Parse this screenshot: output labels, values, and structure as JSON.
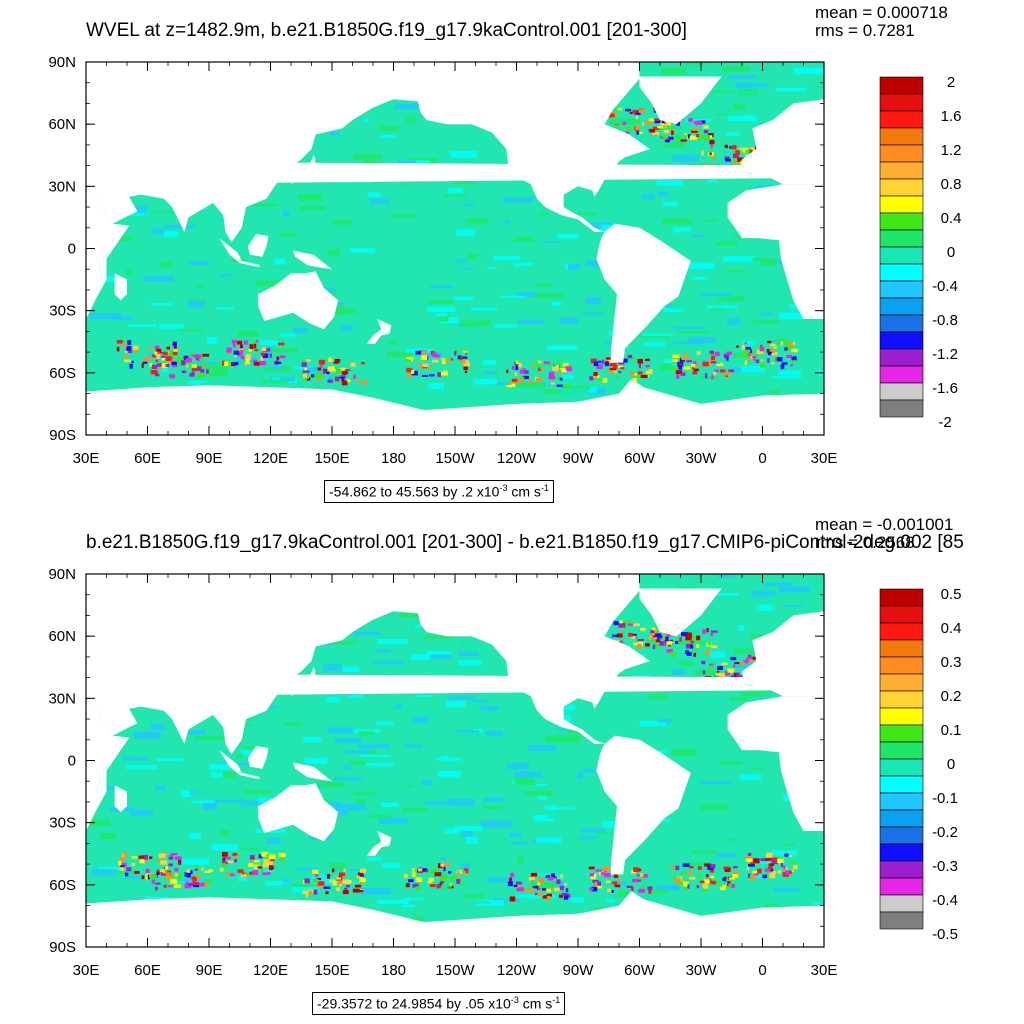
{
  "colors": {
    "palette": [
      "#7f7f7f",
      "#cccccc",
      "#e626e6",
      "#9c1fcf",
      "#0f0fff",
      "#1a73e6",
      "#0ba0f0",
      "#21c6ff",
      "#00ffff",
      "#19e6b3",
      "#1fe666",
      "#40e61a",
      "#ffff00",
      "#ffd333",
      "#ffaf33",
      "#ff8c1f",
      "#f07a0d",
      "#ff1a0d",
      "#e60f0f",
      "#bf0000"
    ],
    "land": "#ffffff",
    "ocean_base": "#22e6b0"
  },
  "axes": {
    "lat_labels": [
      "90N",
      "60N",
      "30N",
      "0",
      "30S",
      "60S",
      "90S"
    ],
    "lon_labels": [
      "30E",
      "60E",
      "90E",
      "120E",
      "150E",
      "180",
      "150W",
      "120W",
      "90W",
      "60W",
      "30W",
      "0",
      "30E"
    ]
  },
  "panels": [
    {
      "title": "WVEL at z=1482.9m, b.e21.B1850G.f19_g17.9kaControl.001 [201-300]",
      "stats_mean": "mean = 0.000718",
      "stats_rms": "rms = 0.7281",
      "info_range": "-54.862 to 45.563 by .2 x10",
      "info_exp": "-3",
      "info_unit": " cm s",
      "info_unit_exp": "-1",
      "colorbar_labels": [
        "2",
        "1.6",
        "1.2",
        "0.8",
        "0.4",
        "0",
        "-0.4",
        "-0.8",
        "-1.2",
        "-1.6",
        "-2"
      ]
    },
    {
      "title": "b.e21.B1850G.f19_g17.9kaControl.001 [201-300] - b.e21.B1850.f19_g17.CMIP6-piControl-2deg.002 [85",
      "stats_mean": "mean = -0.001001",
      "stats_rms": "rms = 0.2568",
      "info_range": "-29.3572 to 24.9854 by .05 x10",
      "info_exp": "-3",
      "info_unit": " cm s",
      "info_unit_exp": "-1",
      "colorbar_labels": [
        "0.5",
        "0.4",
        "0.3",
        "0.2",
        "0.1",
        "0",
        "-0.1",
        "-0.2",
        "-0.3",
        "-0.4",
        "-0.5"
      ]
    }
  ],
  "chart_data": [
    {
      "type": "heatmap",
      "title": "WVEL at z=1482.9m, b.e21.B1850G.f19_g17.9kaControl.001 [201-300]",
      "xlabel": "",
      "ylabel": "",
      "x_range_lon": [
        30,
        390
      ],
      "y_range_lat": [
        -90,
        90
      ],
      "x_ticks": [
        "30E",
        "60E",
        "90E",
        "120E",
        "150E",
        "180",
        "150W",
        "120W",
        "90W",
        "60W",
        "30W",
        "0",
        "30E"
      ],
      "y_ticks": [
        "90N",
        "60N",
        "30N",
        "0",
        "30S",
        "60S",
        "90S"
      ],
      "mean": 0.000718,
      "rms": 0.7281,
      "data_min": -54.862,
      "data_max": 45.563,
      "contour_interval": 0.2,
      "scale": "x10^-3 cm s^-1",
      "colorbar_levels": [
        2,
        1.6,
        1.2,
        0.8,
        0.4,
        0,
        -0.4,
        -0.8,
        -1.2,
        -1.6,
        -2
      ],
      "grid": false,
      "legend": "right"
    },
    {
      "type": "heatmap",
      "title": "b.e21.B1850G.f19_g17.9kaControl.001 [201-300] - b.e21.B1850.f19_g17.CMIP6-piControl-2deg.002 [85",
      "xlabel": "",
      "ylabel": "",
      "x_range_lon": [
        30,
        390
      ],
      "y_range_lat": [
        -90,
        90
      ],
      "x_ticks": [
        "30E",
        "60E",
        "90E",
        "120E",
        "150E",
        "180",
        "150W",
        "120W",
        "90W",
        "60W",
        "30W",
        "0",
        "30E"
      ],
      "y_ticks": [
        "90N",
        "60N",
        "30N",
        "0",
        "30S",
        "60S",
        "90S"
      ],
      "mean": -0.001001,
      "rms": 0.2568,
      "data_min": -29.3572,
      "data_max": 24.9854,
      "contour_interval": 0.05,
      "scale": "x10^-3 cm s^-1",
      "colorbar_levels": [
        0.5,
        0.4,
        0.3,
        0.2,
        0.1,
        0,
        -0.1,
        -0.2,
        -0.3,
        -0.4,
        -0.5
      ],
      "grid": false,
      "legend": "right"
    }
  ]
}
